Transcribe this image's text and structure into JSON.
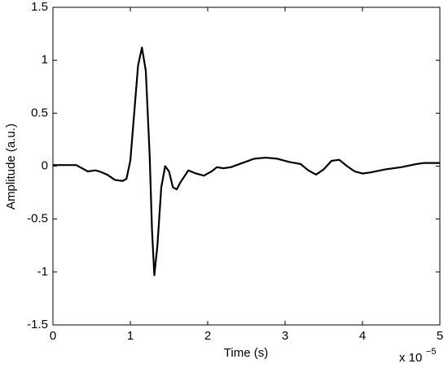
{
  "chart_data": {
    "type": "line",
    "xlabel": "Time (s)",
    "ylabel": "Amplitude (a.u.)",
    "x_multiplier": "x 10",
    "x_multiplier_exponent": "−5",
    "x": [
      0,
      3e-06,
      4.5e-06,
      5.5e-06,
      6e-06,
      7e-06,
      8e-06,
      9e-06,
      9.5e-06,
      1e-05,
      1.05e-05,
      1.1e-05,
      1.15e-05,
      1.2e-05,
      1.25e-05,
      1.28e-05,
      1.31e-05,
      1.35e-05,
      1.4e-05,
      1.45e-05,
      1.5e-05,
      1.55e-05,
      1.6e-05,
      1.65e-05,
      1.75e-05,
      1.85e-05,
      1.95e-05,
      2.05e-05,
      2.12e-05,
      2.2e-05,
      2.3e-05,
      2.45e-05,
      2.6e-05,
      2.75e-05,
      2.9e-05,
      3.05e-05,
      3.2e-05,
      3.3e-05,
      3.4e-05,
      3.5e-05,
      3.6e-05,
      3.7e-05,
      3.8e-05,
      3.9e-05,
      4e-05,
      4.1e-05,
      4.3e-05,
      4.5e-05,
      4.7e-05,
      4.8e-05,
      5e-05
    ],
    "series": [
      {
        "color": "#000000",
        "values": [
          0.01,
          0.01,
          -0.05,
          -0.04,
          -0.05,
          -0.08,
          -0.13,
          -0.14,
          -0.12,
          0.05,
          0.5,
          0.95,
          1.12,
          0.9,
          0.1,
          -0.6,
          -1.03,
          -0.75,
          -0.2,
          0.0,
          -0.05,
          -0.2,
          -0.22,
          -0.15,
          -0.04,
          -0.07,
          -0.09,
          -0.05,
          -0.01,
          -0.02,
          -0.01,
          0.03,
          0.07,
          0.08,
          0.07,
          0.04,
          0.02,
          -0.04,
          -0.08,
          -0.03,
          0.05,
          0.06,
          0.0,
          -0.05,
          -0.07,
          -0.06,
          -0.03,
          -0.01,
          0.02,
          0.03,
          0.03
        ]
      }
    ],
    "xlim": [
      0,
      5e-05
    ],
    "xticks": [
      {
        "value": 0,
        "label": "0"
      },
      {
        "value": 1e-05,
        "label": "1"
      },
      {
        "value": 2e-05,
        "label": "2"
      },
      {
        "value": 3e-05,
        "label": "3"
      },
      {
        "value": 4e-05,
        "label": "4"
      },
      {
        "value": 5e-05,
        "label": "5"
      }
    ],
    "ylim": [
      -1.5,
      1.5
    ],
    "yticks": [
      -1.5,
      -1,
      -0.5,
      0,
      0.5,
      1,
      1.5
    ],
    "grid": false
  }
}
